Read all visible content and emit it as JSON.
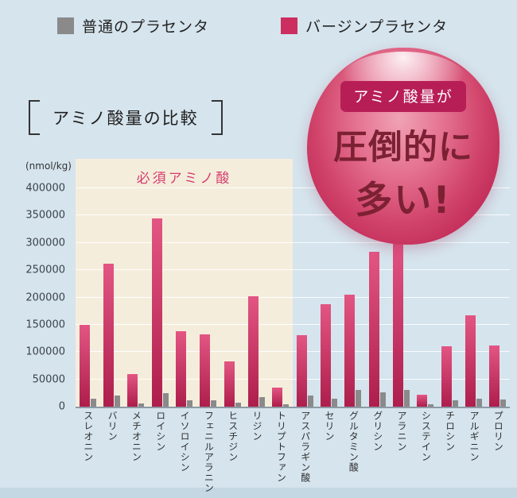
{
  "title": "アミノ酸量の比較",
  "legend": {
    "items": [
      {
        "label": "普通のプラセンタ",
        "color": "#8a8a8a"
      },
      {
        "label": "バージンプラセンタ",
        "color": "#cc2e5f"
      }
    ]
  },
  "bubble": {
    "tag": "アミノ酸量が",
    "line1": "圧倒的に",
    "line2": "多い!"
  },
  "chart_data": {
    "type": "bar",
    "unit_label": "(nmol/kg)",
    "region_label": "必須アミノ酸",
    "region_span": 9,
    "grid": true,
    "ylim": [
      0,
      400000
    ],
    "yticks": [
      0,
      50000,
      100000,
      150000,
      200000,
      250000,
      300000,
      350000,
      400000
    ],
    "categories": [
      "スレオニン",
      "バリン",
      "メチオニン",
      "ロイシン",
      "イソロイシン",
      "フェニルアラニン",
      "ヒスチジン",
      "リジン",
      "トリプトファン",
      "アスパラギン酸",
      "セリン",
      "グルタミン酸",
      "グリシン",
      "アラニン",
      "システイン",
      "チロシン",
      "アルギニン",
      "プロリン"
    ],
    "series": [
      {
        "name": "バージンプラセンタ",
        "key": "virgin",
        "gradient": [
          "#e35583",
          "#ad1e4c"
        ],
        "values": [
          150000,
          262000,
          60000,
          345000,
          138000,
          133000,
          83000,
          202000,
          35000,
          131000,
          188000,
          205000,
          284000,
          305000,
          22000,
          110000,
          167000,
          112000
        ]
      },
      {
        "name": "普通のプラセンタ",
        "key": "regular",
        "color": "#8a8a8a",
        "values": [
          15000,
          20000,
          6000,
          25000,
          12000,
          12000,
          8000,
          18000,
          4000,
          20000,
          15000,
          30000,
          26000,
          30000,
          4000,
          11000,
          15000,
          13000
        ]
      }
    ]
  }
}
